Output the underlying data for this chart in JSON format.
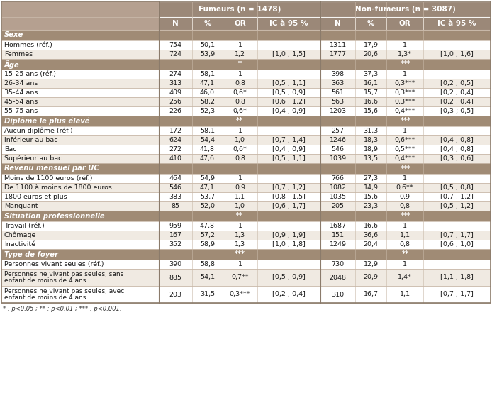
{
  "header_bg": "#9B8878",
  "header_bg2": "#B5A090",
  "section_bg": "#A08B75",
  "row_white": "#FFFFFF",
  "row_alt": "#F0EAE2",
  "outer_border": "#8B7B6B",
  "cell_border": "#C8B8A8",
  "header_text": "#FFFFFF",
  "section_text": "#FFFFFF",
  "body_text": "#1A1A1A",
  "col_headers_row1": [
    "",
    "Fumeurs (n = 1478)",
    "Non-fumeurs (n = 3087)"
  ],
  "col_headers_row2": [
    "",
    "N",
    "%",
    "OR",
    "IC à 95 %",
    "N",
    "%",
    "OR",
    "IC à 95 %"
  ],
  "sections": [
    {
      "name": "Sexe",
      "fumeurs_sig": "",
      "nonfumeurs_sig": "",
      "rows": [
        [
          "Hommes (réf.)",
          "754",
          "50,1",
          "1",
          "",
          "1311",
          "17,9",
          "1",
          ""
        ],
        [
          "Femmes",
          "724",
          "53,9",
          "1,2",
          "[1,0 ; 1,5]",
          "1777",
          "20,6",
          "1,3*",
          "[1,0 ; 1,6]"
        ]
      ]
    },
    {
      "name": "Âge",
      "fumeurs_sig": "*",
      "nonfumeurs_sig": "***",
      "rows": [
        [
          "15-25 ans (réf.)",
          "274",
          "58,1",
          "1",
          "",
          "398",
          "37,3",
          "1",
          ""
        ],
        [
          "26-34 ans",
          "313",
          "47,1",
          "0,8",
          "[0,5 ; 1,1]",
          "363",
          "16,1",
          "0,3***",
          "[0,2 ; 0,5]"
        ],
        [
          "35-44 ans",
          "409",
          "46,0",
          "0,6*",
          "[0,5 ; 0,9]",
          "561",
          "15,7",
          "0,3***",
          "[0,2 ; 0,4]"
        ],
        [
          "45-54 ans",
          "256",
          "58,2",
          "0,8",
          "[0,6 ; 1,2]",
          "563",
          "16,6",
          "0,3***",
          "[0,2 ; 0,4]"
        ],
        [
          "55-75 ans",
          "226",
          "52,3",
          "0,6*",
          "[0,4 ; 0,9]",
          "1203",
          "15,6",
          "0,4***",
          "[0,3 ; 0,5]"
        ]
      ]
    },
    {
      "name": "Diplôme le plus élevé",
      "fumeurs_sig": "**",
      "nonfumeurs_sig": "***",
      "rows": [
        [
          "Aucun diplôme (réf.)",
          "172",
          "58,1",
          "1",
          "",
          "257",
          "31,3",
          "1",
          ""
        ],
        [
          "Inférieur au bac",
          "624",
          "54,4",
          "1,0",
          "[0,7 ; 1,4]",
          "1246",
          "18,3",
          "0,6***",
          "[0,4 ; 0,8]"
        ],
        [
          "Bac",
          "272",
          "41,8",
          "0,6*",
          "[0,4 ; 0,9]",
          "546",
          "18,9",
          "0,5***",
          "[0,4 ; 0,8]"
        ],
        [
          "Supérieur au bac",
          "410",
          "47,6",
          "0,8",
          "[0,5 ; 1,1]",
          "1039",
          "13,5",
          "0,4***",
          "[0,3 ; 0,6]"
        ]
      ]
    },
    {
      "name": "Revenu mensuel par UC",
      "fumeurs_sig": "",
      "nonfumeurs_sig": "***",
      "rows": [
        [
          "Moins de 1100 euros (réf.)",
          "464",
          "54,9",
          "1",
          "",
          "766",
          "27,3",
          "1",
          ""
        ],
        [
          "De 1100 à moins de 1800 euros",
          "546",
          "47,1",
          "0,9",
          "[0,7 ; 1,2]",
          "1082",
          "14,9",
          "0,6**",
          "[0,5 ; 0,8]"
        ],
        [
          "1800 euros et plus",
          "383",
          "53,7",
          "1,1",
          "[0,8 ; 1,5]",
          "1035",
          "15,6",
          "0,9",
          "[0,7 ; 1,2]"
        ],
        [
          "Manquant",
          "85",
          "52,0",
          "1,0",
          "[0,6 ; 1,7]",
          "205",
          "23,3",
          "0,8",
          "[0,5 ; 1,2]"
        ]
      ]
    },
    {
      "name": "Situation professionnelle",
      "fumeurs_sig": "**",
      "nonfumeurs_sig": "***",
      "rows": [
        [
          "Travail (réf.)",
          "959",
          "47,8",
          "1",
          "",
          "1687",
          "16,6",
          "1",
          ""
        ],
        [
          "Chômage",
          "167",
          "57,2",
          "1,3",
          "[0,9 ; 1,9]",
          "151",
          "36,6",
          "1,1",
          "[0,7 ; 1,7]"
        ],
        [
          "Inactivité",
          "352",
          "58,9",
          "1,3",
          "[1,0 ; 1,8]",
          "1249",
          "20,4",
          "0,8",
          "[0,6 ; 1,0]"
        ]
      ]
    },
    {
      "name": "Type de foyer",
      "fumeurs_sig": "***",
      "nonfumeurs_sig": "**",
      "rows": [
        [
          "Personnes vivant seules (réf.)",
          "390",
          "58,8",
          "1",
          "",
          "730",
          "12,9",
          "1",
          ""
        ],
        [
          "Personnes ne vivant pas seules, sans\nenfant de moins de 4 ans",
          "885",
          "54,1",
          "0,7**",
          "[0,5 ; 0,9]",
          "2048",
          "20,9",
          "1,4*",
          "[1,1 ; 1,8]"
        ],
        [
          "Personnes ne vivant pas seules, avec\nenfant de moins de 4 ans",
          "203",
          "31,5",
          "0,3***",
          "[0,2 ; 0,4]",
          "310",
          "16,7",
          "1,1",
          "[0,7 ; 1,7]"
        ]
      ]
    }
  ],
  "footnote": "* : p<0,05 ; ** : p<0,01 ; *** : p<0,001."
}
